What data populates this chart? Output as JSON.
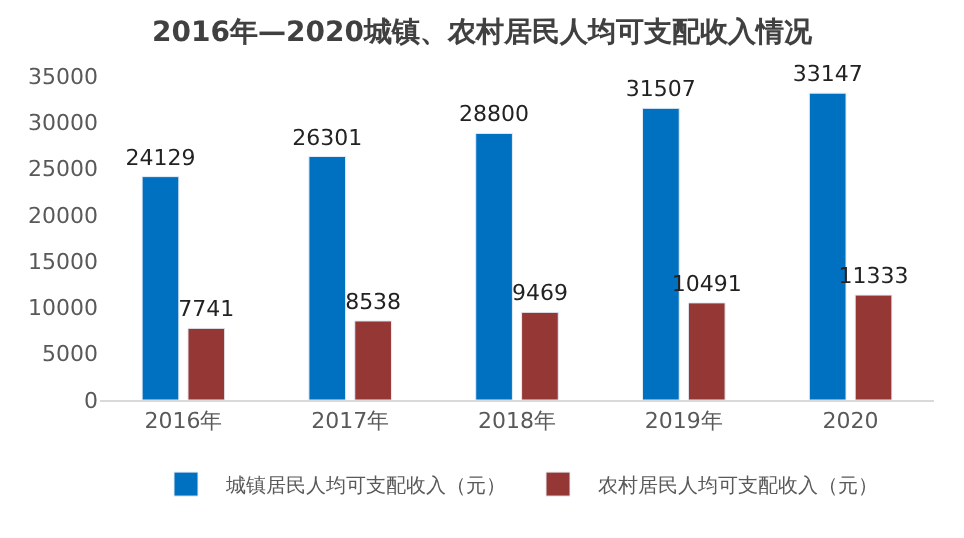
{
  "chart_data": {
    "type": "bar",
    "title": "2016年—2020城镇、农村居民人均可支配收入情况",
    "categories": [
      "2016年",
      "2017年",
      "2018年",
      "2019年",
      "2020"
    ],
    "series": [
      {
        "name": "城镇居民人均可支配收入（元）",
        "color": "#0070c0",
        "values": [
          24129,
          26301,
          28800,
          31507,
          33147
        ]
      },
      {
        "name": "农村居民人均可支配收入（元）",
        "color": "#953735",
        "values": [
          7741,
          8538,
          9469,
          10491,
          11333
        ]
      }
    ],
    "ylim": [
      0,
      35000
    ],
    "yticks": [
      0,
      5000,
      10000,
      15000,
      20000,
      25000,
      30000,
      35000
    ],
    "legend": "bottom",
    "data_labels": true
  }
}
